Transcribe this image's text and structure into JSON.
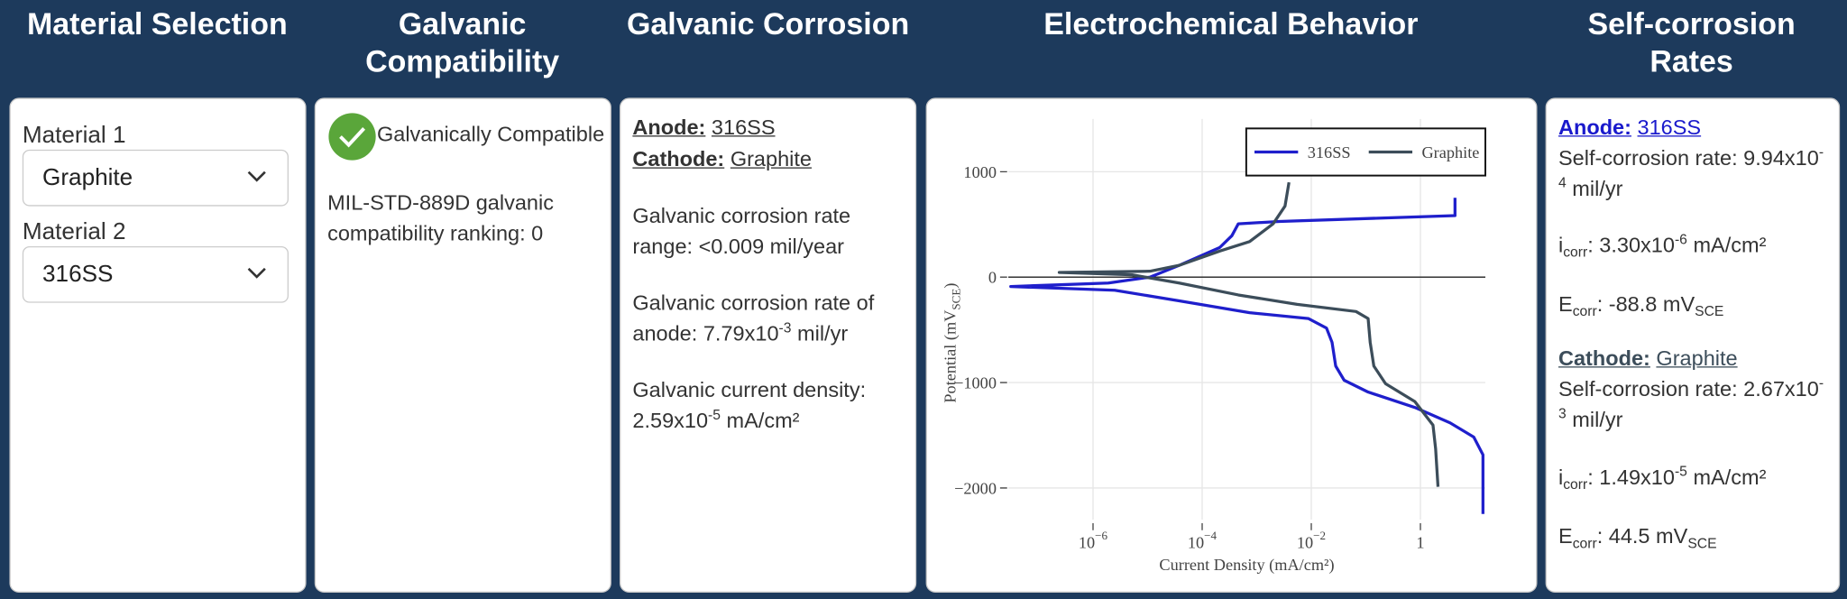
{
  "headers": [
    "Material Selection",
    "Galvanic Compatibility",
    "Galvanic Corrosion",
    "Electrochemical Behavior",
    "Self-corrosion Rates"
  ],
  "material_selection": {
    "material_1": {
      "label": "Material 1",
      "value": "Graphite"
    },
    "material_2": {
      "label": "Material 2",
      "value": "316SS"
    }
  },
  "compatibility": {
    "status": "Galvanically Compatible",
    "ranking_text": "MIL-STD-889D galvanic compatibility ranking: 0"
  },
  "galvanic_corrosion": {
    "anode_label": "Anode:",
    "anode": "316SS",
    "cathode_label": "Cathode:",
    "cathode": "Graphite",
    "rate_range": "Galvanic corrosion rate range: <0.009 mil/year",
    "anode_rate": {
      "label": "Galvanic corrosion rate of anode:",
      "mantissa": "7.79x10",
      "exponent": "-3",
      "unit": "mil/yr"
    },
    "current_density": {
      "label": "Galvanic current density:",
      "mantissa": "2.59x10",
      "exponent": "-5",
      "unit": "mA/cm²"
    }
  },
  "self_corrosion": {
    "anode": {
      "role": "Anode:",
      "material": "316SS",
      "rate": {
        "label": "Self-corrosion rate:",
        "mantissa": "9.94x10",
        "exponent": "-4",
        "unit": "mil/yr"
      },
      "icorr": {
        "symbol": "i",
        "sub": "corr",
        "text": ": 3.30x10",
        "exponent": "-6",
        "unit": "mA/cm²"
      },
      "ecorr": {
        "symbol": "E",
        "sub": "corr",
        "text": ": -88.8 mV",
        "unit_sub": "SCE"
      }
    },
    "cathode": {
      "role": "Cathode:",
      "material": "Graphite",
      "rate": {
        "label": "Self-corrosion rate:",
        "mantissa": "2.67x10",
        "exponent": "-3",
        "unit": "mil/yr"
      },
      "icorr": {
        "symbol": "i",
        "sub": "corr",
        "text": ": 1.49x10",
        "exponent": "-5",
        "unit": "mA/cm²"
      },
      "ecorr": {
        "symbol": "E",
        "sub": "corr",
        "text": ": 44.5 mV",
        "unit_sub": "SCE"
      }
    }
  },
  "chart_data": {
    "type": "line",
    "x_label": "Current Density (mA/cm²)",
    "y_label": {
      "text": "Potential (mV",
      "sub": "SCE",
      "end": ")"
    },
    "xscale": "log",
    "xlim": [
      2.8e-08,
      15.5
    ],
    "ylim": [
      -2300,
      1500
    ],
    "xticks": [
      {
        "value": 1e-06,
        "label": "10",
        "exponent": "−6"
      },
      {
        "value": 0.0001,
        "label": "10",
        "exponent": "−4"
      },
      {
        "value": 0.01,
        "label": "10",
        "exponent": "−2"
      },
      1
    ],
    "yticks": [
      1000,
      0,
      {
        "value": -1000,
        "label": "−1000"
      },
      {
        "value": -2000,
        "label": "−2000"
      }
    ],
    "grid": true,
    "zeroline": true,
    "legend": "top-right",
    "series": [
      {
        "name": "316SS",
        "color": "#1f1fcc",
        "x": [
          4.3,
          4.3,
          0.0026,
          0.00046,
          0.00035,
          0.00021,
          3.8e-05,
          1.1e-05,
          1.9e-06,
          3.1e-08,
          2.5e-06,
          3.8e-05,
          0.00074,
          0.0089,
          0.019,
          0.024,
          0.028,
          0.04,
          0.11,
          0.79,
          3.5,
          9.5,
          14,
          14
        ],
        "values": [
          753,
          584,
          528,
          506,
          393,
          281,
          112,
          0,
          -56,
          -89,
          -124,
          -225,
          -337,
          -393,
          -483,
          -618,
          -843,
          -978,
          -1090,
          -1236,
          -1382,
          -1517,
          -1685,
          -2247
        ]
      },
      {
        "name": "Graphite",
        "color": "#3c4d5a",
        "x": [
          0.0039,
          0.0033,
          0.002,
          0.00074,
          0.00021,
          3.8e-05,
          1.1e-05,
          2.4e-07,
          5.2e-06,
          3.8e-05,
          0.00046,
          0.0055,
          0.066,
          0.11,
          0.12,
          0.14,
          0.23,
          0.79,
          1.7,
          1.9,
          2.1
        ],
        "values": [
          899,
          674,
          506,
          337,
          247,
          112,
          56,
          45,
          22,
          -56,
          -169,
          -258,
          -326,
          -393,
          -618,
          -843,
          -1011,
          -1180,
          -1404,
          -1629,
          -1989
        ]
      }
    ]
  }
}
